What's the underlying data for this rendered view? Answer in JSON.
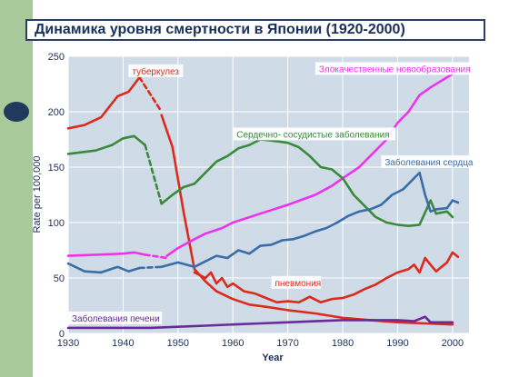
{
  "title": "Динамика уровня смертности в Японии (1920-2000)",
  "chart_data": {
    "type": "line",
    "title": "Динамика уровня смертности в Японии (1920-2000)",
    "xlabel": "Year",
    "ylabel": "Rate per 100,000",
    "xlim": [
      1930,
      2003
    ],
    "ylim": [
      0,
      250
    ],
    "xticks": [
      1930,
      1940,
      1950,
      1960,
      1970,
      1980,
      1990,
      2000
    ],
    "yticks": [
      0,
      50,
      100,
      150,
      200,
      250
    ],
    "grid": true,
    "colors": {
      "plot_bg": "#cfdbe6",
      "grid": "#ffffff",
      "frame": "#1a2f5a"
    },
    "series": [
      {
        "name": "туберкулез",
        "color": "#dd2a1e",
        "segments": [
          {
            "dashed": false,
            "points": [
              [
                1930,
                185
              ],
              [
                1933,
                188
              ],
              [
                1936,
                195
              ],
              [
                1939,
                214
              ],
              [
                1941,
                218
              ],
              [
                1943,
                231
              ]
            ]
          },
          {
            "dashed": true,
            "points": [
              [
                1943,
                231
              ],
              [
                1947,
                200
              ]
            ]
          },
          {
            "dashed": false,
            "points": [
              [
                1947,
                197
              ],
              [
                1949,
                168
              ],
              [
                1951,
                110
              ],
              [
                1953,
                58
              ],
              [
                1955,
                47
              ],
              [
                1957,
                38
              ],
              [
                1960,
                31
              ],
              [
                1963,
                26
              ],
              [
                1966,
                24
              ],
              [
                1970,
                21
              ],
              [
                1975,
                18
              ],
              [
                1980,
                14
              ],
              [
                1985,
                12
              ],
              [
                1990,
                10
              ],
              [
                1995,
                9
              ],
              [
                2000,
                8
              ]
            ]
          }
        ]
      },
      {
        "name": "пневмония",
        "color": "#dd2a1e",
        "segments": [
          {
            "dashed": false,
            "points": [
              [
                1953,
                55
              ],
              [
                1955,
                50
              ],
              [
                1956,
                55
              ],
              [
                1957,
                45
              ],
              [
                1958,
                50
              ],
              [
                1959,
                42
              ],
              [
                1960,
                45
              ],
              [
                1962,
                38
              ],
              [
                1964,
                36
              ],
              [
                1966,
                32
              ],
              [
                1968,
                28
              ],
              [
                1970,
                29
              ],
              [
                1972,
                28
              ],
              [
                1974,
                33
              ],
              [
                1976,
                28
              ],
              [
                1978,
                31
              ],
              [
                1980,
                32
              ],
              [
                1982,
                35
              ],
              [
                1984,
                40
              ],
              [
                1986,
                44
              ],
              [
                1988,
                50
              ],
              [
                1990,
                55
              ],
              [
                1992,
                58
              ],
              [
                1993,
                62
              ],
              [
                1994,
                55
              ],
              [
                1995,
                68
              ],
              [
                1996,
                62
              ],
              [
                1997,
                56
              ],
              [
                1998,
                60
              ],
              [
                1999,
                64
              ],
              [
                2000,
                73
              ],
              [
                2001,
                69
              ]
            ]
          }
        ]
      },
      {
        "name": "Злокачественные новообразования",
        "color": "#ee33ee",
        "segments": [
          {
            "dashed": false,
            "points": [
              [
                1930,
                70
              ],
              [
                1935,
                71
              ],
              [
                1940,
                72
              ],
              [
                1942,
                73
              ],
              [
                1944,
                71
              ]
            ]
          },
          {
            "dashed": true,
            "points": [
              [
                1944,
                71
              ],
              [
                1948,
                68
              ]
            ]
          },
          {
            "dashed": false,
            "points": [
              [
                1948,
                70
              ],
              [
                1950,
                77
              ],
              [
                1953,
                85
              ],
              [
                1955,
                90
              ],
              [
                1958,
                95
              ],
              [
                1960,
                100
              ],
              [
                1965,
                108
              ],
              [
                1970,
                116
              ],
              [
                1975,
                125
              ],
              [
                1978,
                133
              ],
              [
                1980,
                140
              ],
              [
                1983,
                150
              ],
              [
                1985,
                160
              ],
              [
                1988,
                175
              ],
              [
                1990,
                190
              ],
              [
                1992,
                200
              ],
              [
                1994,
                215
              ],
              [
                1996,
                222
              ],
              [
                1998,
                228
              ],
              [
                2000,
                234
              ],
              [
                2001,
                238
              ]
            ]
          }
        ]
      },
      {
        "name": "Сердечно- сосудистые заболевания",
        "color": "#3a8a3a",
        "segments": [
          {
            "dashed": false,
            "points": [
              [
                1930,
                162
              ],
              [
                1935,
                165
              ],
              [
                1938,
                170
              ],
              [
                1940,
                176
              ],
              [
                1942,
                178
              ],
              [
                1944,
                170
              ]
            ]
          },
          {
            "dashed": true,
            "points": [
              [
                1944,
                170
              ],
              [
                1947,
                117
              ]
            ]
          },
          {
            "dashed": false,
            "points": [
              [
                1947,
                117
              ],
              [
                1949,
                125
              ],
              [
                1951,
                132
              ],
              [
                1953,
                135
              ],
              [
                1955,
                145
              ],
              [
                1957,
                155
              ],
              [
                1959,
                160
              ],
              [
                1961,
                167
              ],
              [
                1963,
                170
              ],
              [
                1965,
                175
              ],
              [
                1967,
                174
              ],
              [
                1970,
                172
              ],
              [
                1972,
                168
              ],
              [
                1974,
                160
              ],
              [
                1976,
                150
              ],
              [
                1978,
                148
              ],
              [
                1980,
                140
              ],
              [
                1982,
                125
              ],
              [
                1984,
                115
              ],
              [
                1986,
                105
              ],
              [
                1988,
                100
              ],
              [
                1990,
                98
              ],
              [
                1992,
                97
              ],
              [
                1994,
                98
              ],
              [
                1996,
                120
              ],
              [
                1997,
                108
              ],
              [
                1999,
                110
              ],
              [
                2000,
                105
              ]
            ]
          }
        ]
      },
      {
        "name": "Заболевания сердца",
        "color": "#3a6ea8",
        "segments": [
          {
            "dashed": false,
            "points": [
              [
                1930,
                63
              ],
              [
                1933,
                56
              ],
              [
                1936,
                55
              ],
              [
                1939,
                60
              ],
              [
                1941,
                56
              ],
              [
                1943,
                59
              ]
            ]
          },
          {
            "dashed": true,
            "points": [
              [
                1943,
                59
              ],
              [
                1947,
                60
              ]
            ]
          },
          {
            "dashed": false,
            "points": [
              [
                1947,
                60
              ],
              [
                1950,
                64
              ],
              [
                1953,
                60
              ],
              [
                1955,
                65
              ],
              [
                1957,
                70
              ],
              [
                1959,
                68
              ],
              [
                1961,
                75
              ],
              [
                1963,
                72
              ],
              [
                1965,
                79
              ],
              [
                1967,
                80
              ],
              [
                1969,
                84
              ],
              [
                1971,
                85
              ],
              [
                1973,
                88
              ],
              [
                1975,
                92
              ],
              [
                1977,
                95
              ],
              [
                1979,
                100
              ],
              [
                1981,
                106
              ],
              [
                1983,
                110
              ],
              [
                1985,
                112
              ],
              [
                1987,
                116
              ],
              [
                1989,
                125
              ],
              [
                1991,
                130
              ],
              [
                1993,
                140
              ],
              [
                1994,
                145
              ],
              [
                1995,
                125
              ],
              [
                1996,
                110
              ],
              [
                1997,
                112
              ],
              [
                1999,
                113
              ],
              [
                2000,
                120
              ],
              [
                2001,
                118
              ]
            ]
          }
        ]
      },
      {
        "name": "Заболевания печени",
        "color": "#6a2a9a",
        "segments": [
          {
            "dashed": false,
            "points": [
              [
                1930,
                5
              ],
              [
                1935,
                5
              ],
              [
                1940,
                5
              ],
              [
                1945,
                5
              ],
              [
                1950,
                6
              ],
              [
                1955,
                7
              ],
              [
                1960,
                8
              ],
              [
                1965,
                9
              ],
              [
                1970,
                10
              ],
              [
                1975,
                11
              ],
              [
                1980,
                12
              ],
              [
                1985,
                12
              ],
              [
                1990,
                12
              ],
              [
                1993,
                11
              ],
              [
                1995,
                15
              ],
              [
                1996,
                10
              ],
              [
                2000,
                10
              ]
            ]
          }
        ]
      }
    ],
    "labels": [
      {
        "text": "туберкулез",
        "x": 1941,
        "y": 237,
        "color": "#dd2a1e"
      },
      {
        "text": "Злокачественные новообразования",
        "x": 1975,
        "y": 239,
        "color": "#ee33ee"
      },
      {
        "text": "Сердечно- сосудистые заболевания",
        "x": 1960,
        "y": 180,
        "color": "#3a8a3a"
      },
      {
        "text": "Заболевания сердца",
        "x": 1987,
        "y": 155,
        "color": "#3a6ea8"
      },
      {
        "text": "пневмония",
        "x": 1967,
        "y": 46,
        "color": "#dd2a1e"
      },
      {
        "text": "Заболевания печени",
        "x": 1930,
        "y": 14,
        "color": "#6a2a9a"
      }
    ]
  }
}
